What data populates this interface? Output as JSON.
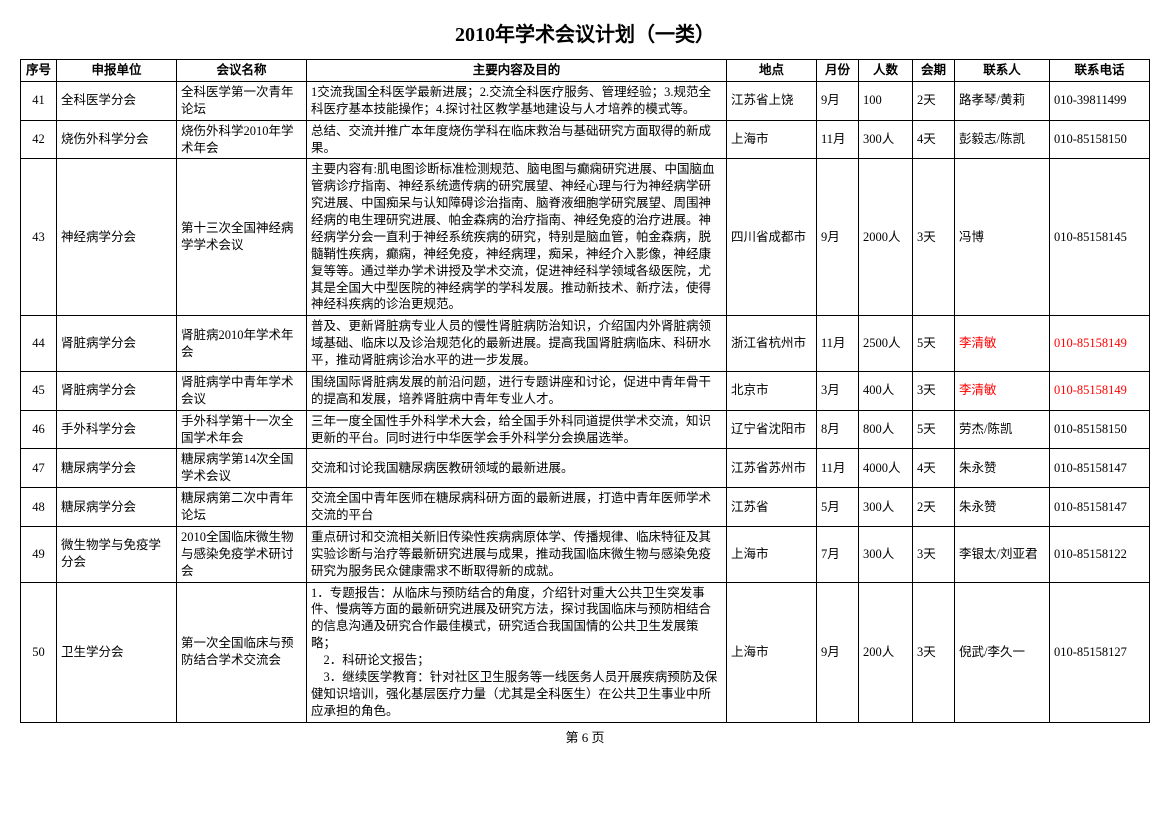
{
  "title": "2010年学术会议计划（一类）",
  "footer": "第 6 页",
  "columns": [
    "序号",
    "申报单位",
    "会议名称",
    "主要内容及目的",
    "地点",
    "月份",
    "人数",
    "会期",
    "联系人",
    "联系电话"
  ],
  "colors": {
    "highlight": "#ff0000",
    "text": "#000000",
    "border": "#000000",
    "background": "#ffffff"
  },
  "rows": [
    {
      "idx": "41",
      "org": "全科医学分会",
      "name": "全科医学第一次青年论坛",
      "desc": "1交流我国全科医学最新进展；2.交流全科医疗服务、管理经验；3.规范全科医疗基本技能操作；4.探讨社区教学基地建设与人才培养的模式等。",
      "loc": "江苏省上饶",
      "month": "9月",
      "ppl": "100",
      "dur": "2天",
      "contact": "路孝琴/黄莉",
      "phone": "010-39811499",
      "highlight": false
    },
    {
      "idx": "42",
      "org": "烧伤外科学分会",
      "name": "烧伤外科学2010年学术年会",
      "desc": "总结、交流并推广本年度烧伤学科在临床救治与基础研究方面取得的新成果。",
      "loc": "上海市",
      "month": "11月",
      "ppl": "300人",
      "dur": "4天",
      "contact": "彭毅志/陈凯",
      "phone": "010-85158150",
      "highlight": false
    },
    {
      "idx": "43",
      "org": "神经病学分会",
      "name": "第十三次全国神经病学学术会议",
      "desc": "主要内容有:肌电图诊断标准检测规范、脑电图与癫痫研究进展、中国脑血管病诊疗指南、神经系统遗传病的研究展望、神经心理与行为神经病学研究进展、中国痴呆与认知障碍诊治指南、脑脊液细胞学研究展望、周围神经病的电生理研究进展、帕金森病的治疗指南、神经免疫的治疗进展。神经病学分会一直利于神经系统疾病的研究，特别是脑血管，帕金森病，脱髓鞘性疾病，癫痫，神经免疫，神经病理，痴呆，神经介入影像，神经康复等等。通过举办学术讲授及学术交流，促进神经科学领域各级医院，尤其是全国大中型医院的神经病学的学科发展。推动新技术、新疗法，使得神经科疾病的诊治更规范。",
      "loc": "四川省成都市",
      "month": "9月",
      "ppl": "2000人",
      "dur": "3天",
      "contact": "冯博",
      "phone": "010-85158145",
      "highlight": false
    },
    {
      "idx": "44",
      "org": "肾脏病学分会",
      "name": "肾脏病2010年学术年会",
      "desc": "普及、更新肾脏病专业人员的慢性肾脏病防治知识，介绍国内外肾脏病领域基础、临床以及诊治规范化的最新进展。提高我国肾脏病临床、科研水平，推动肾脏病诊治水平的进一步发展。",
      "loc": "浙江省杭州市",
      "month": "11月",
      "ppl": "2500人",
      "dur": "5天",
      "contact": "李清敏",
      "phone": "010-85158149",
      "highlight": true
    },
    {
      "idx": "45",
      "org": "肾脏病学分会",
      "name": "肾脏病学中青年学术会议",
      "desc": "围绕国际肾脏病发展的前沿问题，进行专题讲座和讨论，促进中青年骨干的提高和发展，培养肾脏病中青年专业人才。",
      "loc": "北京市",
      "month": "3月",
      "ppl": "400人",
      "dur": "3天",
      "contact": "李清敏",
      "phone": "010-85158149",
      "highlight": true
    },
    {
      "idx": "46",
      "org": "手外科学分会",
      "name": "手外科学第十一次全国学术年会",
      "desc": "三年一度全国性手外科学术大会，给全国手外科同道提供学术交流，知识更新的平台。同时进行中华医学会手外科学分会换届选举。",
      "loc": "辽宁省沈阳市",
      "month": "8月",
      "ppl": "800人",
      "dur": "5天",
      "contact": "劳杰/陈凯",
      "phone": "010-85158150",
      "highlight": false
    },
    {
      "idx": "47",
      "org": "糖尿病学分会",
      "name": "糖尿病学第14次全国学术会议",
      "desc": "交流和讨论我国糖尿病医教研领域的最新进展。",
      "loc": "江苏省苏州市",
      "month": "11月",
      "ppl": "4000人",
      "dur": "4天",
      "contact": "朱永赞",
      "phone": "010-85158147",
      "highlight": false
    },
    {
      "idx": "48",
      "org": "糖尿病学分会",
      "name": "糖尿病第二次中青年论坛",
      "desc": "交流全国中青年医师在糖尿病科研方面的最新进展，打造中青年医师学术交流的平台",
      "loc": "江苏省",
      "month": "5月",
      "ppl": "300人",
      "dur": "2天",
      "contact": "朱永赞",
      "phone": "010-85158147",
      "highlight": false
    },
    {
      "idx": "49",
      "org": "微生物学与免疫学分会",
      "name": "2010全国临床微生物与感染免疫学术研讨会",
      "desc": "重点研讨和交流相关新旧传染性疾病病原体学、传播规律、临床特征及其实验诊断与治疗等最新研究进展与成果，推动我国临床微生物与感染免疫研究为服务民众健康需求不断取得新的成就。",
      "loc": "上海市",
      "month": "7月",
      "ppl": "300人",
      "dur": "3天",
      "contact": "李银太/刘亚君",
      "phone": "010-85158122",
      "highlight": false
    },
    {
      "idx": "50",
      "org": "卫生学分会",
      "name": "第一次全国临床与预防结合学术交流会",
      "desc": "1．专题报告：从临床与预防结合的角度，介绍针对重大公共卫生突发事件、慢病等方面的最新研究进展及研究方法，探讨我国临床与预防相结合的信息沟通及研究合作最佳模式，研究适合我国国情的公共卫生发展策略；\n　2．科研论文报告；\n　3．继续医学教育：针对社区卫生服务等一线医务人员开展疾病预防及保健知识培训，强化基层医疗力量（尤其是全科医生）在公共卫生事业中所应承担的角色。",
      "loc": "上海市",
      "month": "9月",
      "ppl": "200人",
      "dur": "3天",
      "contact": "倪武/李久一",
      "phone": "010-85158127",
      "highlight": false
    }
  ]
}
